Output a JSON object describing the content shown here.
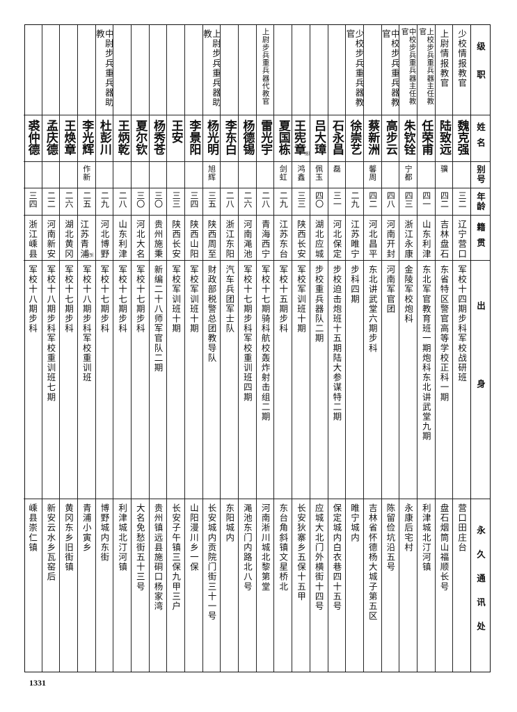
{
  "headers": {
    "rank": "级职",
    "name": "姓名",
    "alias": "别号",
    "age": "年龄",
    "native_place": "籍贯",
    "background": "出身",
    "address": "永久通讯处"
  },
  "rows": [
    {
      "rank": "少校情报教官",
      "name": "魏克强",
      "alias": "",
      "age": "三二",
      "native_place": "辽宁营口",
      "background": "军校十四期步科军校战研班",
      "address": "营口田庄台"
    },
    {
      "rank": "上尉情报教官",
      "name": "陆致远",
      "alias": "骥",
      "age": "四二",
      "native_place": "吉林盘石",
      "background": "东省特区警官高等学校正科一期",
      "address": "盘石烟筒山福顺长号"
    },
    {
      "rank": "上校步兵重兵器主任教官",
      "name": "任荣甫",
      "alias": "",
      "age": "四一",
      "native_place": "山东利津",
      "background": "东北军官教育班一期炮科东北讲武堂九期",
      "address": "利津城北汀河镇",
      "small": true
    },
    {
      "rank": "中校步兵重兵器主任教官",
      "name": "朱钦铨",
      "alias": "宁都",
      "age": "四三",
      "native_place": "浙江永康",
      "background": "金陵军校炮科",
      "address": "永康后宅村",
      "small": true
    },
    {
      "rank": "中校步兵重兵器教官",
      "name": "高步云",
      "alias": "",
      "age": "四八",
      "native_place": "河南开封",
      "background": "河南军官团",
      "address": "陈留俭坑沿五号"
    },
    {
      "rank": "",
      "name": "蔡新洲",
      "alias": "馨周",
      "age": "四二",
      "native_place": "河北昌平",
      "background": "东北讲武堂六期步科",
      "address": "吉林省怀德杨大城子第五区"
    },
    {
      "rank": "少校步兵重兵器教官",
      "name": "徐崇艺",
      "alias": "",
      "age": "二九",
      "native_place": "江苏睢宁",
      "background": "步科四期",
      "address": "睢宁城内"
    },
    {
      "rank": "",
      "name": "石永昌",
      "alias": "磊",
      "age": "三一",
      "native_place": "河北保定",
      "background": "步校迫击炮班十五期陆大参谋特二期",
      "address": "保定城内白衣巷四十五号"
    },
    {
      "rank": "",
      "name": "吕大璋",
      "alias": "佩玉",
      "age": "四〇",
      "native_place": "湖北应城",
      "background": "步校重兵器队二期",
      "address": "应城大北门外横街十四号"
    },
    {
      "rank": "",
      "name": "王宪章",
      "name_mark": "⑻",
      "alias": "鸿鑫",
      "age": "三三",
      "native_place": "陕西长安",
      "background": "军校军训班十期",
      "address": "长安狄寨乡五保十五甲"
    },
    {
      "rank": "",
      "name": "夏国栋",
      "alias": "剑虹",
      "age": "二九",
      "native_place": "江苏东台",
      "background": "军校十五期步科",
      "address": "东台角斜镇文星桥北"
    },
    {
      "rank": "上尉步兵重兵器代教官",
      "name": "雷光宇",
      "alias": "",
      "age": "二八",
      "native_place": "青海西宁",
      "background": "军校十七期骑科航校轰炸射击组二期",
      "address": "河南淅川城北黎第堂",
      "small": true
    },
    {
      "rank": "",
      "name": "杨德锡",
      "alias": "",
      "age": "二六",
      "native_place": "河南渑池",
      "background": "军校十七期步科军校重训班四期",
      "address": "渑池东门内路北八号"
    },
    {
      "rank": "",
      "name": "李东白",
      "alias": "",
      "age": "二八",
      "native_place": "浙江东阳",
      "background": "汽车兵团军士队",
      "address": "东阳城内"
    },
    {
      "rank": "上尉步兵重兵器助教",
      "name": "杨光明",
      "alias": "旭辉",
      "age": "三五",
      "native_place": "陕西周至",
      "background": "财政部税警总团教导队",
      "address": "长安城内贡院门街三十一号"
    },
    {
      "rank": "",
      "name": "李景阳",
      "alias": "",
      "age": "三四",
      "native_place": "陕西山阳",
      "background": "军校军训班十期",
      "address": "山阳漫川乡一保"
    },
    {
      "rank": "",
      "name": "王安",
      "alias": "",
      "age": "三三",
      "native_place": "陕西长安",
      "background": "军校军训班十期",
      "address": "长安子午镇三保九甲三户"
    },
    {
      "rank": "",
      "name": "杨秀苍",
      "alias": "",
      "age": "三〇",
      "native_place": "贵州施秉",
      "background": "新编二十八师军官队二期",
      "address": "贵州镇远县施硐口杨家湾"
    },
    {
      "rank": "",
      "name": "夏尔钦",
      "alias": "",
      "age": "三〇",
      "native_place": "河北大名",
      "background": "军校十七期步科",
      "address": "大名免愁街五十三号"
    },
    {
      "rank": "",
      "name": "王炳乾",
      "alias": "",
      "age": "二八",
      "native_place": "山东利津",
      "background": "军校十七期步科",
      "address": "利津城北汀河镇"
    },
    {
      "rank": "中尉步兵重兵器助教",
      "name": "杜彭川",
      "alias": "",
      "age": "二九",
      "native_place": "河北博野",
      "background": "军校十七期步科",
      "address": "博野城内东街"
    },
    {
      "rank": "",
      "name": "李光辉",
      "alias": "作新",
      "age": "二五",
      "native_place": "江苏青浦",
      "place_mark": "⑼",
      "background": "军校十八期步科军校重训班",
      "address": "青浦小寅乡"
    },
    {
      "rank": "",
      "name": "王焕章",
      "alias": "",
      "age": "二六",
      "native_place": "湖北黄冈",
      "background": "军校十七期步科",
      "address": "黄冈东乡旧街镇"
    },
    {
      "rank": "",
      "name": "孟庆德",
      "alias": "",
      "age": "二二",
      "native_place": "河南新安",
      "background": "军校十八期步科军校重训班七期",
      "address": "新安云水乡瓦窑后"
    },
    {
      "rank": "",
      "name": "裘仲德",
      "alias": "",
      "age": "三四",
      "native_place": "浙江嵊县",
      "background": "军校十八期步科",
      "address": "嵊县崇仁镇"
    }
  ],
  "page_number": "1331"
}
